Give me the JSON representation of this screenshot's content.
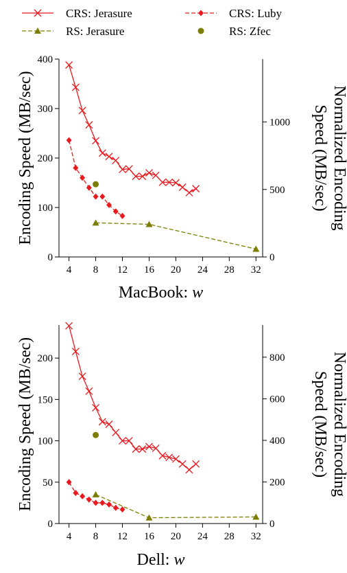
{
  "legend": [
    {
      "label": "CRS: Jerasure",
      "color": "#e8191f",
      "marker": "x",
      "dash": false
    },
    {
      "label": "CRS: Luby",
      "color": "#e8191f",
      "marker": "diamond",
      "dash": true
    },
    {
      "label": "RS: Jerasure",
      "color": "#7d7d00",
      "marker": "triangle",
      "dash": true
    },
    {
      "label": "RS: Zfec",
      "color": "#7d7d00",
      "marker": "circle",
      "dash": false
    }
  ],
  "chart_data": [
    {
      "type": "line",
      "xlabel_prefix": "MacBook: ",
      "xlabel_var": "w",
      "ylabel": "Encoding Speed (MB/sec)",
      "y2label": [
        "Normalized Encoding",
        "Speed (MB/sec)"
      ],
      "xlim": [
        2.5,
        33
      ],
      "ylim": [
        0,
        400
      ],
      "y2lim": [
        0,
        1466
      ],
      "xticks": [
        4,
        8,
        12,
        16,
        20,
        24,
        28,
        32
      ],
      "yticks": [
        0,
        100,
        200,
        300,
        400
      ],
      "y2ticks": [
        0,
        500,
        1000
      ],
      "series": [
        {
          "name": "CRS: Jerasure",
          "x": [
            4,
            5,
            6,
            7,
            8,
            9,
            10,
            11,
            12,
            13,
            14,
            15,
            16,
            17,
            18,
            19,
            20,
            21,
            22,
            23
          ],
          "y": [
            388,
            343,
            296,
            267,
            235,
            210,
            203,
            195,
            177,
            178,
            163,
            163,
            170,
            165,
            151,
            151,
            150,
            141,
            130,
            138
          ]
        },
        {
          "name": "CRS: Luby",
          "x": [
            4,
            5,
            6,
            7,
            8,
            9,
            10,
            11,
            12
          ],
          "y": [
            236,
            180,
            160,
            140,
            122,
            122,
            105,
            92,
            83
          ]
        },
        {
          "name": "RS: Jerasure",
          "x": [
            8,
            16,
            32
          ],
          "y": [
            69,
            66,
            16
          ]
        },
        {
          "name": "RS: Zfec",
          "x": [
            8
          ],
          "y": [
            147
          ]
        }
      ]
    },
    {
      "type": "line",
      "xlabel_prefix": "Dell: ",
      "xlabel_var": "w",
      "ylabel": "Encoding Speed (MB/sec)",
      "y2label": [
        "Normalized Encoding",
        "Speed (MB/sec)"
      ],
      "xlim": [
        2.5,
        33
      ],
      "ylim": [
        0,
        240
      ],
      "y2lim": [
        0,
        955
      ],
      "xticks": [
        4,
        8,
        12,
        16,
        20,
        24,
        28,
        32
      ],
      "yticks": [
        0,
        50,
        100,
        150,
        200
      ],
      "y2ticks": [
        0,
        200,
        400,
        600,
        800
      ],
      "series": [
        {
          "name": "CRS: Jerasure",
          "x": [
            4,
            5,
            6,
            7,
            8,
            9,
            10,
            11,
            12,
            13,
            14,
            15,
            16,
            17,
            18,
            19,
            20,
            21,
            22,
            23
          ],
          "y": [
            239,
            208,
            178,
            160,
            140,
            123,
            120,
            110,
            100,
            100,
            90,
            90,
            93,
            91,
            82,
            80,
            78,
            72,
            65,
            72
          ]
        },
        {
          "name": "CRS: Luby",
          "x": [
            4,
            5,
            6,
            7,
            8,
            9,
            10,
            11,
            12
          ],
          "y": [
            50,
            37,
            33,
            29,
            25,
            25,
            23,
            19,
            17
          ]
        },
        {
          "name": "RS: Jerasure",
          "x": [
            8,
            16,
            32
          ],
          "y": [
            35,
            7,
            8
          ]
        },
        {
          "name": "RS: Zfec",
          "x": [
            8
          ],
          "y": [
            107
          ]
        }
      ]
    }
  ]
}
